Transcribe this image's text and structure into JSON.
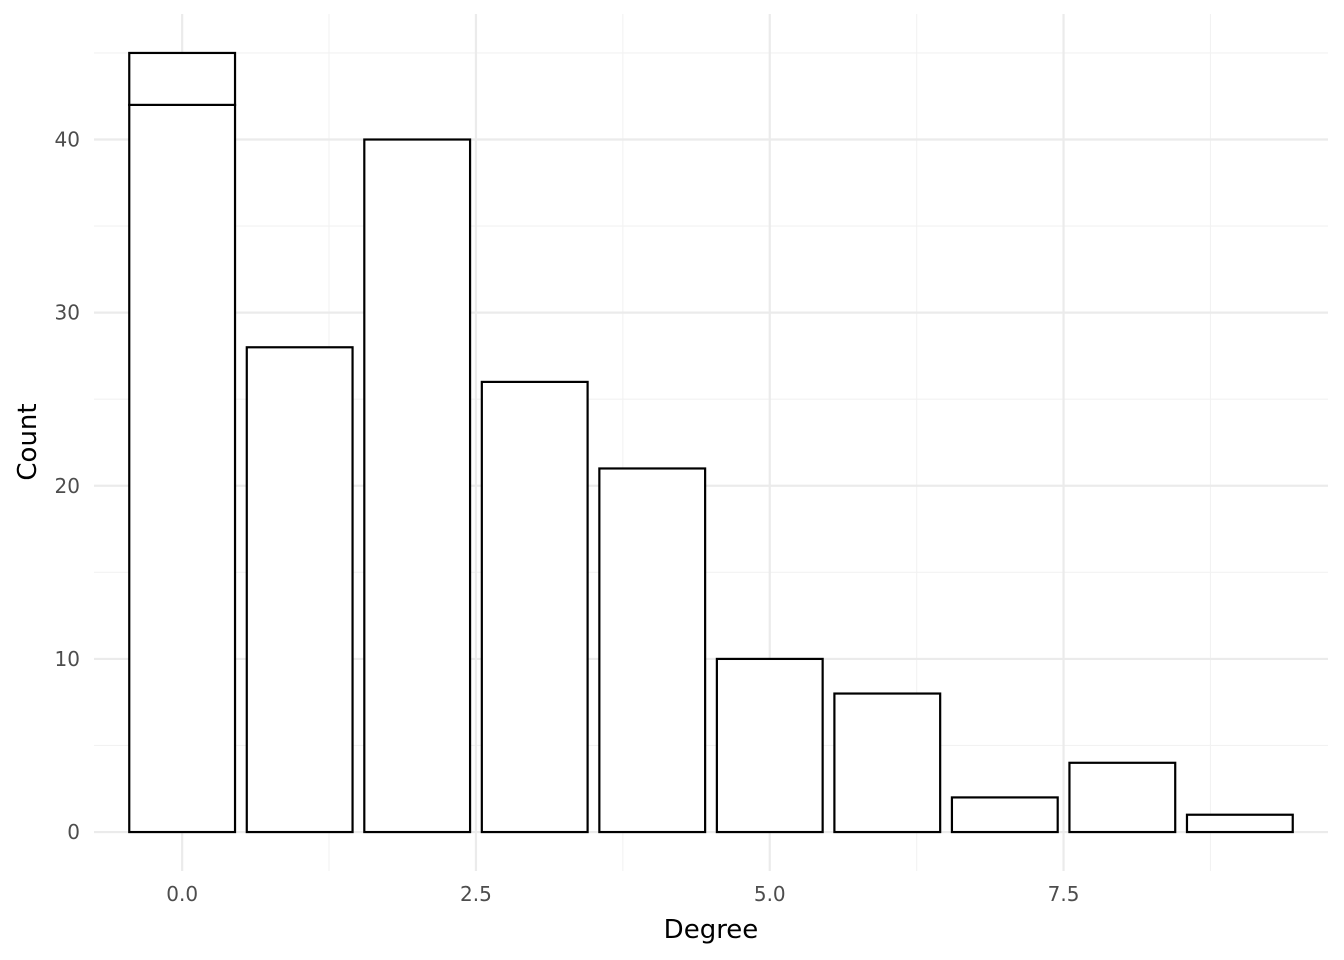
{
  "chart_data": {
    "type": "bar",
    "title": "",
    "xlabel": "Degree",
    "ylabel": "Count",
    "x": [
      0,
      1,
      2,
      3,
      4,
      5,
      6,
      7,
      8,
      9
    ],
    "series": [
      {
        "values": [
          42,
          28,
          40,
          26,
          21,
          10,
          8,
          2,
          4,
          1
        ]
      },
      {
        "values": [
          3,
          0,
          0,
          0,
          0,
          0,
          0,
          0,
          0,
          0
        ]
      }
    ],
    "stacked": true,
    "bar_fill": "#ffffff",
    "bar_outline": "#000000",
    "xlim": [
      -0.75,
      9.75
    ],
    "ylim": [
      -2.25,
      47.25
    ],
    "x_ticks": [
      0,
      2.5,
      5,
      7.5
    ],
    "x_tick_labels": [
      "0.0",
      "2.5",
      "5.0",
      "7.5"
    ],
    "y_ticks": [
      0,
      10,
      20,
      30,
      40
    ],
    "y_tick_labels": [
      "0",
      "10",
      "20",
      "30",
      "40"
    ],
    "grid": true,
    "legend": "none"
  }
}
